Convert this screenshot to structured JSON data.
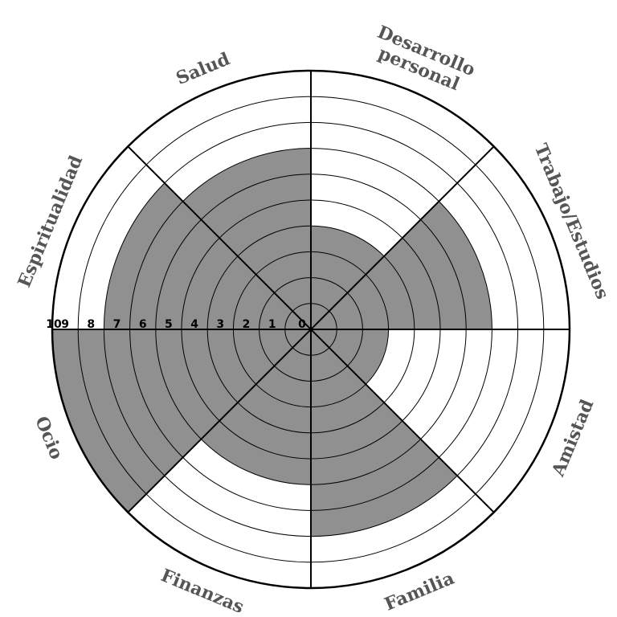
{
  "chart_data": {
    "type": "polar-area",
    "title": "",
    "rings": [
      "0",
      "1",
      "2",
      "3",
      "4",
      "5",
      "6",
      "7",
      "8",
      "9",
      "10"
    ],
    "r_max": 10,
    "categories": [
      "Desarrollo personal",
      "Trabajo/Estudios",
      "Amistad",
      "Familia",
      "Finanzas",
      "Ocio",
      "Espiritualidad",
      "Salud"
    ],
    "category_lines": [
      [
        "Desarrollo",
        "personal"
      ],
      [
        "Trabajo/Estudios"
      ],
      [
        "Amistad"
      ],
      [
        "Familia"
      ],
      [
        "Finanzas"
      ],
      [
        "Ocio"
      ],
      [
        "Espiritualidad"
      ],
      [
        "Salud"
      ]
    ],
    "values": [
      4,
      7,
      3,
      8,
      6,
      10,
      8,
      7
    ],
    "colors": {
      "fill": "#909090",
      "line": "#000000",
      "label": "#555555"
    }
  }
}
